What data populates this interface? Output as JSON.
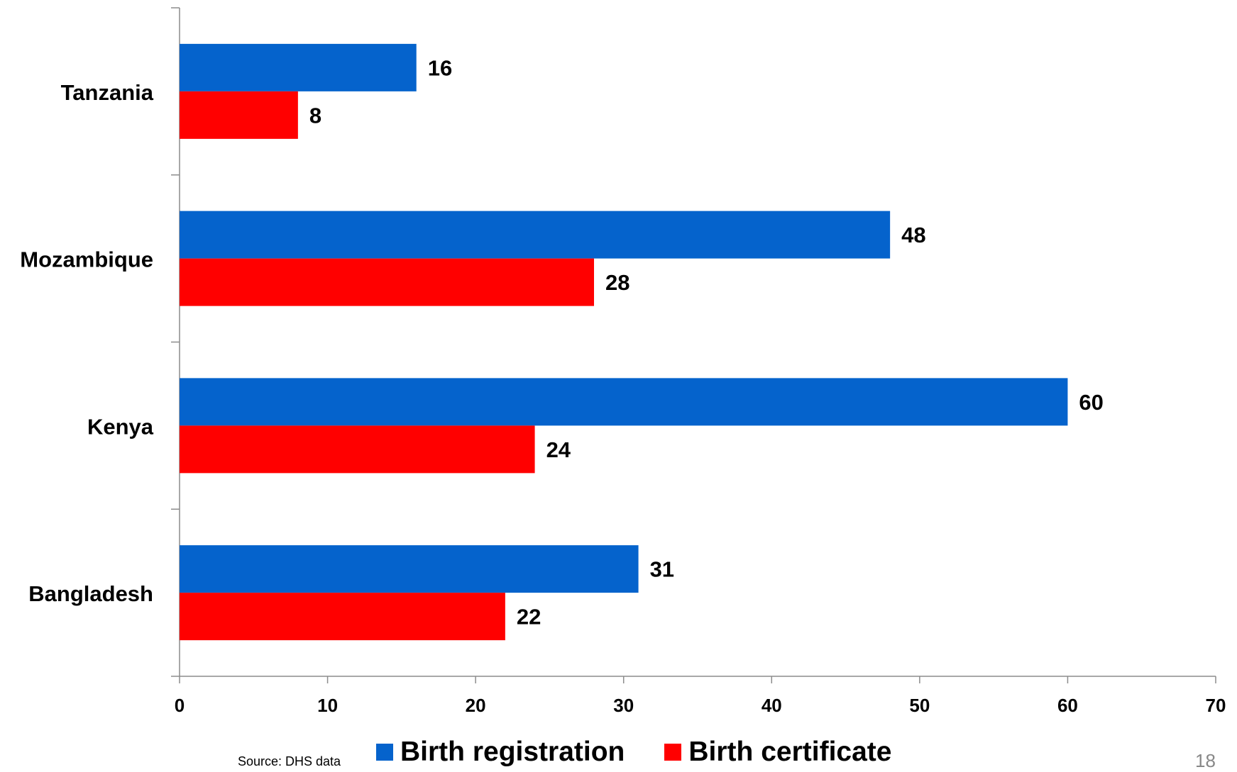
{
  "chart_data": {
    "type": "bar",
    "orientation": "horizontal",
    "categories": [
      "Tanzania",
      "Mozambique",
      "Kenya",
      "Bangladesh"
    ],
    "series": [
      {
        "name": "Birth registration",
        "values": [
          16,
          48,
          60,
          31
        ],
        "color": "#0563cc"
      },
      {
        "name": "Birth certificate",
        "values": [
          8,
          28,
          24,
          22
        ],
        "color": "#ff0000"
      }
    ],
    "xlim": [
      0,
      70
    ],
    "xticks": [
      "0",
      "10",
      "20",
      "30",
      "40",
      "50",
      "60",
      "70"
    ],
    "grid": false,
    "legend_position": "bottom"
  },
  "footer": {
    "source_text": "Source: DHS data",
    "slide_number": "18"
  }
}
